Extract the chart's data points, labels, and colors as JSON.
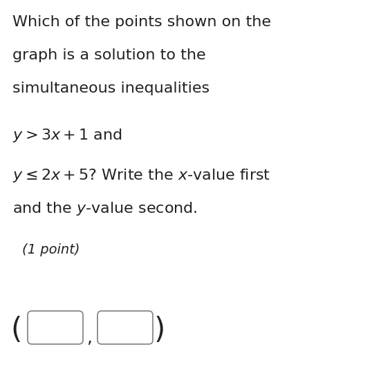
{
  "background_color": "#ffffff",
  "figsize": [
    5.51,
    5.34
  ],
  "dpi": 100,
  "line1": "Which of the points shown on the",
  "line2": "graph is a solution to the",
  "line3": "simultaneous inequalities",
  "line4": "$y > 3x + 1$ and",
  "line5": "$y \\leq 2x + 5$? Write the $x$-value first",
  "line6": "and the $y$-value second.",
  "point_label": "(1 point)",
  "font_size_main": 16,
  "font_size_point": 14,
  "text_color": "#222222",
  "box_edge_color": "#888888",
  "box_face_color": "#ffffff"
}
